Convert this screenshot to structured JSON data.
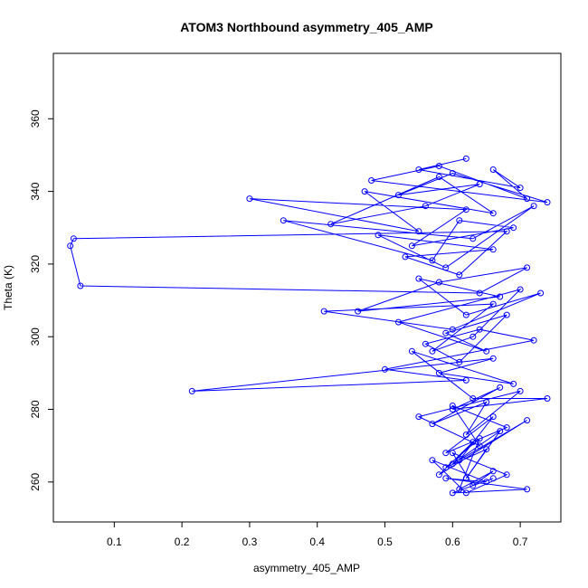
{
  "chart_data": {
    "type": "line",
    "title": "ATOM3 Northbound asymmetry_405_AMP",
    "xlabel": "asymmetry_405_AMP",
    "ylabel": "Theta (K)",
    "xlim": [
      0.01,
      0.76
    ],
    "ylim": [
      249,
      378
    ],
    "x_ticks": [
      {
        "value": 0.1,
        "label": "0.1"
      },
      {
        "value": 0.2,
        "label": "0.2"
      },
      {
        "value": 0.3,
        "label": "0.3"
      },
      {
        "value": 0.4,
        "label": "0.4"
      },
      {
        "value": 0.5,
        "label": "0.5"
      },
      {
        "value": 0.6,
        "label": "0.6"
      },
      {
        "value": 0.7,
        "label": "0.7"
      }
    ],
    "y_ticks": [
      {
        "value": 260,
        "label": "260"
      },
      {
        "value": 280,
        "label": "280"
      },
      {
        "value": 300,
        "label": "300"
      },
      {
        "value": 320,
        "label": "320"
      },
      {
        "value": 340,
        "label": "340"
      },
      {
        "value": 360,
        "label": "360"
      }
    ],
    "grid": false,
    "series": [
      {
        "color": "#0000ff",
        "marker": "open-circle",
        "line": true,
        "x": [
          0.62,
          0.55,
          0.7,
          0.66,
          0.71,
          0.58,
          0.48,
          0.74,
          0.6,
          0.52,
          0.64,
          0.56,
          0.42,
          0.58,
          0.66,
          0.47,
          0.55,
          0.3,
          0.62,
          0.54,
          0.69,
          0.61,
          0.57,
          0.35,
          0.63,
          0.72,
          0.59,
          0.49,
          0.66,
          0.53,
          0.61,
          0.68,
          0.04,
          0.035,
          0.05,
          0.64,
          0.71,
          0.58,
          0.46,
          0.67,
          0.55,
          0.62,
          0.73,
          0.6,
          0.41,
          0.66,
          0.57,
          0.63,
          0.7,
          0.52,
          0.65,
          0.59,
          0.68,
          0.61,
          0.56,
          0.64,
          0.72,
          0.5,
          0.62,
          0.215,
          0.66,
          0.58,
          0.69,
          0.54,
          0.63,
          0.74,
          0.6,
          0.67,
          0.57,
          0.65,
          0.62,
          0.7,
          0.55,
          0.64,
          0.6,
          0.68,
          0.59,
          0.66,
          0.61,
          0.71,
          0.58,
          0.63,
          0.6,
          0.67,
          0.62,
          0.65,
          0.59,
          0.64,
          0.61,
          0.66,
          0.63,
          0.6,
          0.68,
          0.62,
          0.57,
          0.65,
          0.59,
          0.71,
          0.6,
          0.66
        ],
        "y": [
          349,
          346,
          341,
          346,
          338,
          347,
          343,
          337,
          345,
          339,
          342,
          336,
          331,
          344,
          334,
          340,
          329,
          338,
          335,
          325,
          330,
          332,
          321,
          332,
          327,
          336,
          319,
          328,
          324,
          322,
          317,
          329,
          327,
          325,
          314,
          312,
          319,
          315,
          307,
          311,
          316,
          306,
          312,
          302,
          307,
          309,
          296,
          300,
          313,
          304,
          296,
          301,
          306,
          293,
          298,
          302,
          299,
          291,
          288,
          285,
          294,
          290,
          287,
          296,
          283,
          283,
          280,
          286,
          276,
          282,
          273,
          285,
          278,
          270,
          281,
          275,
          268,
          278,
          266,
          277,
          262,
          271,
          265,
          274,
          261,
          269,
          264,
          272,
          258,
          263,
          259,
          268,
          262,
          257,
          266,
          260,
          261,
          258,
          257,
          261
        ]
      }
    ]
  }
}
